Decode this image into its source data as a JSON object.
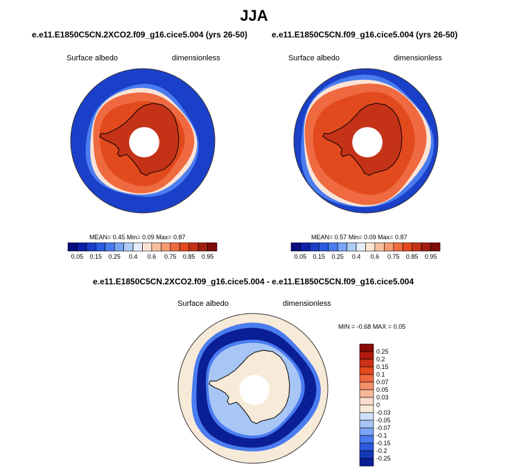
{
  "figure": {
    "season": "JJA"
  },
  "colors": {
    "land_outline": "#000000",
    "ring": "#333333"
  },
  "chart_data": [
    {
      "type": "heatmap",
      "projection": "south-polar-stereographic",
      "title": "e.e11.E1850C5CN.2XCO2.f09_g16.cice5.004 (yrs 26-50)",
      "variable": "Surface albedo",
      "units": "dimensionless",
      "mean_label": "MEAN=",
      "mean": "0.45",
      "min_label": "Min=",
      "min": "0.09",
      "max_label": "Max=",
      "max": "0.87",
      "colorbar": {
        "orientation": "horizontal",
        "tick_labels": [
          "0.05",
          "0.15",
          "0.25",
          "0.4",
          "0.6",
          "0.75",
          "0.85",
          "0.95"
        ],
        "colors": [
          "#0a0a80",
          "#0f1fa8",
          "#1a3fc8",
          "#2a5ae0",
          "#4a7cf0",
          "#7aa4f5",
          "#b0ccf5",
          "#e6eefa",
          "#fbe4d6",
          "#f8c0a0",
          "#f59a70",
          "#ef6a40",
          "#e24a1e",
          "#c43218",
          "#a01e10",
          "#7e0c06"
        ]
      },
      "sea_ice_edge_lat": -62,
      "land_albedo_range": [
        0.8,
        0.87
      ]
    },
    {
      "type": "heatmap",
      "projection": "south-polar-stereographic",
      "title": "e.e11.E1850C5CN.f09_g16.cice5.004 (yrs 26-50)",
      "variable": "Surface albedo",
      "units": "dimensionless",
      "mean_label": "MEAN=",
      "mean": "0.57",
      "min_label": "Min=",
      "min": "0.09",
      "max_label": "Max=",
      "max": "0.87",
      "colorbar": {
        "orientation": "horizontal",
        "tick_labels": [
          "0.05",
          "0.15",
          "0.25",
          "0.4",
          "0.6",
          "0.75",
          "0.85",
          "0.95"
        ],
        "colors": [
          "#0a0a80",
          "#0f1fa8",
          "#1a3fc8",
          "#2a5ae0",
          "#4a7cf0",
          "#7aa4f5",
          "#b0ccf5",
          "#e6eefa",
          "#fbe4d6",
          "#f8c0a0",
          "#f59a70",
          "#ef6a40",
          "#e24a1e",
          "#c43218",
          "#a01e10",
          "#7e0c06"
        ]
      },
      "sea_ice_edge_lat": -57,
      "land_albedo_range": [
        0.8,
        0.87
      ]
    },
    {
      "type": "heatmap",
      "projection": "south-polar-stereographic",
      "title": "e.e11.E1850C5CN.2XCO2.f09_g16.cice5.004 - e.e11.E1850C5CN.f09_g16.cice5.004",
      "variable": "Surface albedo",
      "units": "dimensionless",
      "min_label": "MIN =",
      "min": "-0.68",
      "max_label": "MAX =",
      "max": "0.05",
      "colorbar": {
        "orientation": "vertical",
        "tick_labels": [
          "0.25",
          "0.2",
          "0.15",
          "0.1",
          "0.07",
          "0.05",
          "0.03",
          "0",
          "-0.03",
          "-0.05",
          "-0.07",
          "-0.1",
          "-0.15",
          "-0.2",
          "-0.25"
        ],
        "colors": [
          "#8a0a06",
          "#b01a0e",
          "#cc3016",
          "#e24a1e",
          "#ef6a40",
          "#f5906a",
          "#f8b898",
          "#fbdccc",
          "#f8ead8",
          "#cfe0f8",
          "#a8c6f5",
          "#7aa4f5",
          "#4a7cf0",
          "#2a5ae0",
          "#1438b8",
          "#0a1e96"
        ]
      }
    }
  ]
}
